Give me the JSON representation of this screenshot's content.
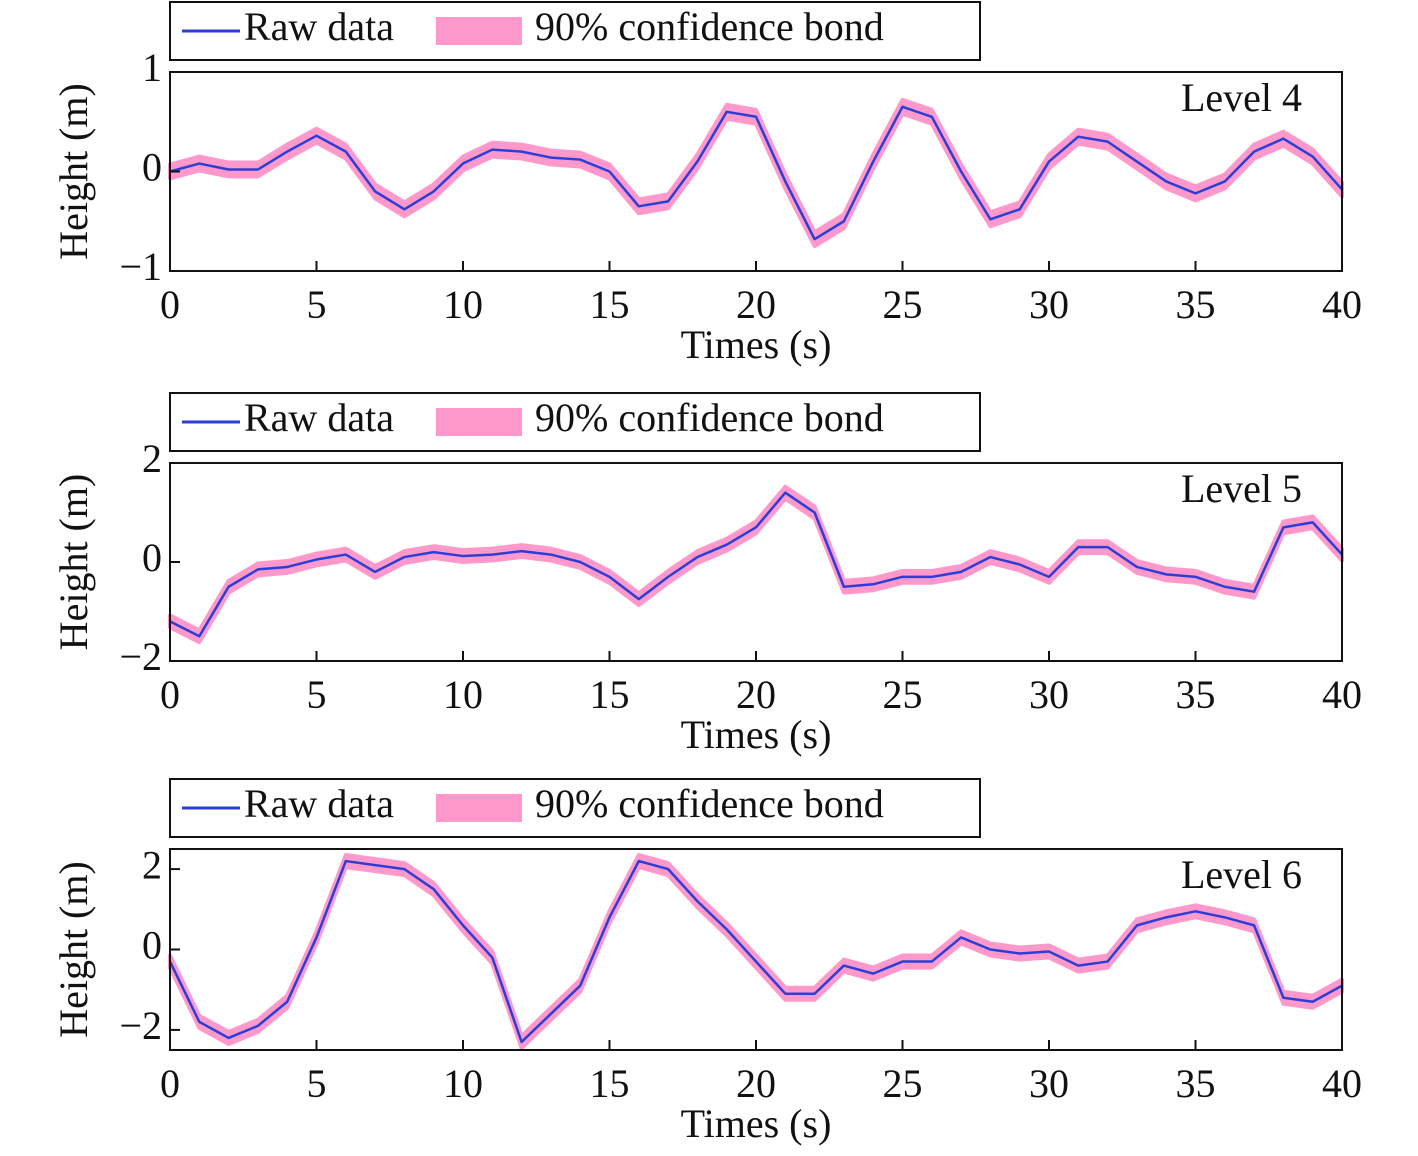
{
  "chart_data": [
    {
      "type": "line",
      "xlabel": "Times (s)",
      "ylabel": "Height (m)",
      "annotation": "Level 4",
      "xlim": [
        0,
        40
      ],
      "xticks": [
        0,
        5,
        10,
        15,
        20,
        25,
        30,
        35,
        40
      ],
      "ylim": [
        -1,
        1
      ],
      "yticks": [
        {
          "value": -1,
          "label": "−1"
        },
        0,
        1
      ],
      "x": [
        0,
        1,
        2,
        3,
        4,
        5,
        6,
        7,
        8,
        9,
        10,
        11,
        12,
        13,
        14,
        15,
        16,
        17,
        18,
        19,
        20,
        21,
        22,
        23,
        24,
        25,
        26,
        27,
        28,
        29,
        30,
        31,
        32,
        33,
        34,
        35,
        36,
        37,
        38,
        39,
        40
      ],
      "series": [
        {
          "name": "Raw data",
          "color": "#2b3fd6",
          "values": [
            0.0,
            0.08,
            0.02,
            0.02,
            0.2,
            0.36,
            0.2,
            -0.2,
            -0.38,
            -0.2,
            0.08,
            0.22,
            0.2,
            0.14,
            0.12,
            0.0,
            -0.35,
            -0.3,
            0.1,
            0.6,
            0.55,
            -0.1,
            -0.68,
            -0.5,
            0.1,
            0.65,
            0.55,
            0.0,
            -0.48,
            -0.38,
            0.1,
            0.35,
            0.3,
            0.1,
            -0.1,
            -0.22,
            -0.1,
            0.2,
            0.33,
            0.15,
            -0.18
          ]
        },
        {
          "name": "90% confidence bond",
          "color": "#ff99cc",
          "halfwidth": 0.07
        }
      ]
    },
    {
      "type": "line",
      "xlabel": "Times (s)",
      "ylabel": "Height (m)",
      "annotation": "Level 5",
      "xlim": [
        0,
        40
      ],
      "xticks": [
        0,
        5,
        10,
        15,
        20,
        25,
        30,
        35,
        40
      ],
      "ylim": [
        -2,
        2
      ],
      "yticks": [
        {
          "value": -2,
          "label": "−2"
        },
        0,
        2
      ],
      "x": [
        0,
        1,
        2,
        3,
        4,
        5,
        6,
        7,
        8,
        9,
        10,
        11,
        12,
        13,
        14,
        15,
        16,
        17,
        18,
        19,
        20,
        21,
        22,
        23,
        24,
        25,
        26,
        27,
        28,
        29,
        30,
        31,
        32,
        33,
        34,
        35,
        36,
        37,
        38,
        39,
        40
      ],
      "series": [
        {
          "name": "Raw data",
          "color": "#2b3fd6",
          "values": [
            -1.2,
            -1.5,
            -0.5,
            -0.15,
            -0.1,
            0.05,
            0.15,
            -0.2,
            0.1,
            0.2,
            0.12,
            0.15,
            0.22,
            0.15,
            0.0,
            -0.3,
            -0.75,
            -0.3,
            0.1,
            0.35,
            0.7,
            1.4,
            1.0,
            -0.5,
            -0.45,
            -0.3,
            -0.3,
            -0.2,
            0.1,
            -0.05,
            -0.3,
            0.3,
            0.3,
            -0.1,
            -0.25,
            -0.3,
            -0.5,
            -0.6,
            0.7,
            0.8,
            0.15
          ]
        },
        {
          "name": "90% confidence bond",
          "color": "#ff99cc",
          "halfwidth": 0.12
        }
      ]
    },
    {
      "type": "line",
      "xlabel": "Times (s)",
      "ylabel": "Height (m)",
      "annotation": "Level 6",
      "xlim": [
        0,
        40
      ],
      "xticks": [
        0,
        5,
        10,
        15,
        20,
        25,
        30,
        35,
        40
      ],
      "ylim": [
        -2.5,
        2.5
      ],
      "yticks": [
        {
          "value": -2,
          "label": "−2"
        },
        0,
        2
      ],
      "x": [
        0,
        1,
        2,
        3,
        4,
        5,
        6,
        7,
        8,
        9,
        10,
        11,
        12,
        13,
        14,
        15,
        16,
        17,
        18,
        19,
        20,
        21,
        22,
        23,
        24,
        25,
        26,
        27,
        28,
        29,
        30,
        31,
        32,
        33,
        34,
        35,
        36,
        37,
        38,
        39,
        40
      ],
      "series": [
        {
          "name": "Raw data",
          "color": "#2b3fd6",
          "values": [
            -0.3,
            -1.8,
            -2.2,
            -1.9,
            -1.3,
            0.3,
            2.2,
            2.1,
            2.0,
            1.5,
            0.6,
            -0.2,
            -2.3,
            -1.6,
            -0.9,
            0.8,
            2.2,
            2.0,
            1.2,
            0.5,
            -0.3,
            -1.1,
            -1.1,
            -0.4,
            -0.6,
            -0.3,
            -0.3,
            0.3,
            0.0,
            -0.1,
            -0.05,
            -0.4,
            -0.3,
            0.6,
            0.8,
            0.95,
            0.8,
            0.6,
            -1.2,
            -1.3,
            -0.9
          ]
        },
        {
          "name": "90% confidence bond",
          "color": "#ff99cc",
          "halfwidth": 0.15
        }
      ]
    }
  ]
}
